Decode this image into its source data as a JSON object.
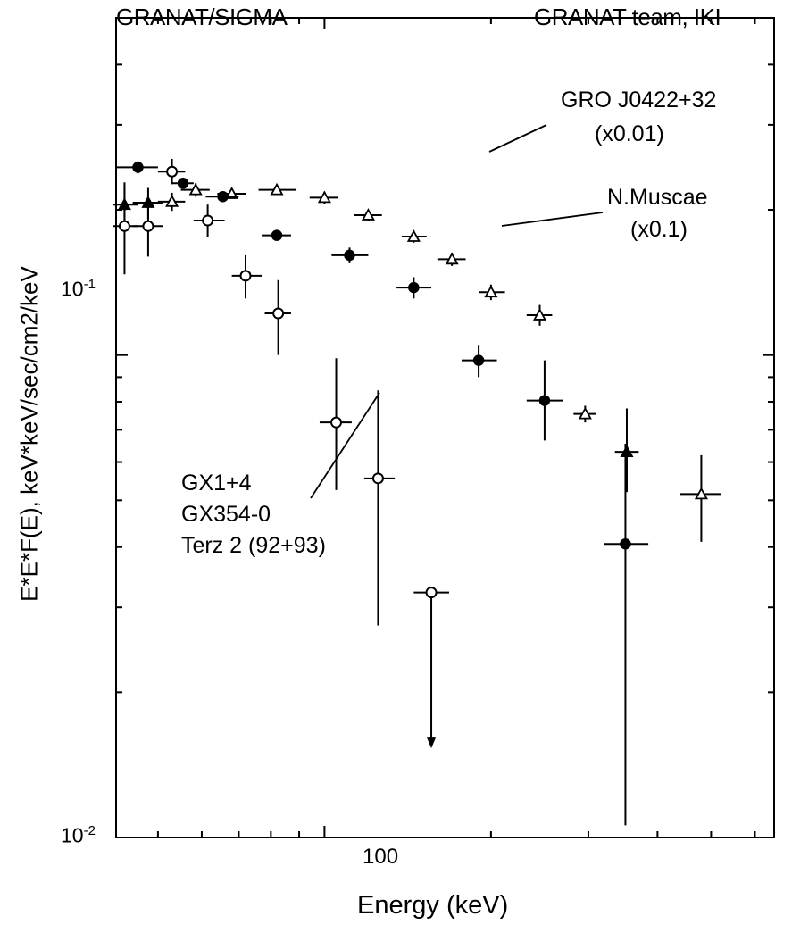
{
  "header": {
    "left": "GRANAT/SIGMA",
    "right": "GRANAT team, IKI"
  },
  "annotations": {
    "gro_name": "GRO J0422+32",
    "gro_scale": "(x0.01)",
    "muscae_name": "N.Muscae",
    "muscae_scale": "(x0.1)",
    "gx_line1": "GX1+4",
    "gx_line2": "GX354-0",
    "gx_line3": "Terz 2 (92+93)"
  },
  "chart_data": {
    "type": "scatter",
    "title": "",
    "xlabel": "Energy (keV)",
    "ylabel": "E*E*F(E), keV*keV/sec/cm2/keV",
    "x_scale": "log",
    "y_scale": "log",
    "xlim": [
      42,
      650
    ],
    "ylim": [
      0.01,
      0.5
    ],
    "x_ticks": [
      {
        "value": 100,
        "label": "100"
      }
    ],
    "y_ticks": [
      {
        "value": 0.1,
        "base": "10",
        "exp": "-1"
      },
      {
        "value": 0.01,
        "base": "10",
        "exp": "-2"
      }
    ],
    "grid": false,
    "series": [
      {
        "marker": "open-triangle",
        "points": [
          {
            "x": 43.5,
            "y": 0.205,
            "xerr": [
              41.5,
              46
            ],
            "yerr": [
              0.185,
              0.228
            ]
          },
          {
            "x": 48,
            "y": 0.207,
            "xerr": [
              45,
              51
            ],
            "yerr": [
              0.192,
              0.222
            ]
          },
          {
            "x": 53,
            "y": 0.208,
            "xerr": [
              50,
              56
            ],
            "yerr": [
              0.199,
              0.217
            ]
          },
          {
            "x": 58.5,
            "y": 0.22,
            "xerr": [
              55,
              62
            ],
            "yerr": [
              0.213,
              0.227
            ]
          },
          {
            "x": 68,
            "y": 0.216,
            "xerr": [
              64,
              72
            ],
            "yerr": [
              0.211,
              0.221
            ]
          },
          {
            "x": 82,
            "y": 0.22,
            "xerr": [
              76,
              89
            ],
            "yerr": [
              0.215,
              0.225
            ]
          },
          {
            "x": 100,
            "y": 0.212,
            "xerr": [
              94,
              106
            ],
            "yerr": [
              0.206,
              0.218
            ]
          },
          {
            "x": 120,
            "y": 0.195,
            "xerr": [
              113,
              127
            ],
            "yerr": [
              0.19,
              0.2
            ]
          },
          {
            "x": 145,
            "y": 0.176,
            "xerr": [
              138,
              153
            ],
            "yerr": [
              0.171,
              0.181
            ]
          },
          {
            "x": 170,
            "y": 0.158,
            "xerr": [
              160,
              180
            ],
            "yerr": [
              0.153,
              0.163
            ]
          },
          {
            "x": 200,
            "y": 0.135,
            "xerr": [
              190,
              212
            ],
            "yerr": [
              0.13,
              0.14
            ]
          },
          {
            "x": 245,
            "y": 0.121,
            "xerr": [
              232,
              258
            ],
            "yerr": [
              0.115,
              0.127
            ]
          },
          {
            "x": 296,
            "y": 0.0755,
            "xerr": [
              282,
              310
            ],
            "yerr": [
              0.0725,
              0.0785
            ]
          },
          {
            "x": 352,
            "y": 0.063,
            "xerr": [
              335,
              370
            ],
            "yerr": [
              0.052,
              0.0775
            ]
          },
          {
            "x": 480,
            "y": 0.0515,
            "xerr": [
              440,
              520
            ],
            "yerr": [
              0.041,
              0.062
            ]
          }
        ]
      },
      {
        "marker": "filled-circle",
        "points": [
          {
            "x": 46,
            "y": 0.245,
            "xerr": [
              42,
              50
            ],
            "yerr": [
              0.238,
              0.252
            ]
          },
          {
            "x": 55.5,
            "y": 0.227,
            "xerr": [
              53,
              58
            ],
            "yerr": [
              0.221,
              0.233
            ]
          },
          {
            "x": 65.5,
            "y": 0.213,
            "xerr": [
              61,
              70
            ],
            "yerr": [
              0.208,
              0.218
            ]
          },
          {
            "x": 82,
            "y": 0.177,
            "xerr": [
              77,
              87
            ],
            "yerr": [
              0.173,
              0.181
            ]
          },
          {
            "x": 111,
            "y": 0.161,
            "xerr": [
              103,
              120
            ],
            "yerr": [
              0.155,
              0.167
            ]
          },
          {
            "x": 145,
            "y": 0.138,
            "xerr": [
              135,
              156
            ],
            "yerr": [
              0.131,
              0.145
            ]
          },
          {
            "x": 190,
            "y": 0.0975,
            "xerr": [
              177,
              205
            ],
            "yerr": [
              0.09,
              0.105
            ]
          },
          {
            "x": 250,
            "y": 0.0805,
            "xerr": [
              232,
              270
            ],
            "yerr": [
              0.0665,
              0.0975
            ]
          },
          {
            "x": 350,
            "y": 0.0406,
            "xerr": [
              320,
              385
            ],
            "yerr": [
              0.0106,
              0.0655
            ]
          }
        ]
      },
      {
        "marker": "open-circle",
        "points": [
          {
            "x": 43.5,
            "y": 0.185,
            "xerr": [
              41.5,
              46
            ],
            "yerr": [
              0.147,
              0.223
            ]
          },
          {
            "x": 48,
            "y": 0.185,
            "xerr": [
              45,
              51
            ],
            "yerr": [
              0.16,
              0.21
            ]
          },
          {
            "x": 53,
            "y": 0.24,
            "xerr": [
              50,
              56
            ],
            "yerr": [
              0.226,
              0.255
            ]
          },
          {
            "x": 61.5,
            "y": 0.19,
            "xerr": [
              58,
              66
            ],
            "yerr": [
              0.176,
              0.205
            ]
          },
          {
            "x": 72,
            "y": 0.146,
            "xerr": [
              68,
              77
            ],
            "yerr": [
              0.131,
              0.161
            ]
          },
          {
            "x": 82.5,
            "y": 0.122,
            "xerr": [
              78,
              87
            ],
            "yerr": [
              0.1,
              0.143
            ]
          },
          {
            "x": 105,
            "y": 0.0725,
            "xerr": [
              98,
              112
            ],
            "yerr": [
              0.0525,
              0.0985
            ]
          },
          {
            "x": 125,
            "y": 0.0555,
            "xerr": [
              118,
              134
            ],
            "yerr": [
              0.0275,
              0.0845
            ]
          },
          {
            "x": 156,
            "y": 0.0322,
            "xerr": [
              145,
              168
            ],
            "yerr": [
              0.0155,
              0.0322
            ],
            "upper_limit": true
          }
        ]
      }
    ]
  }
}
